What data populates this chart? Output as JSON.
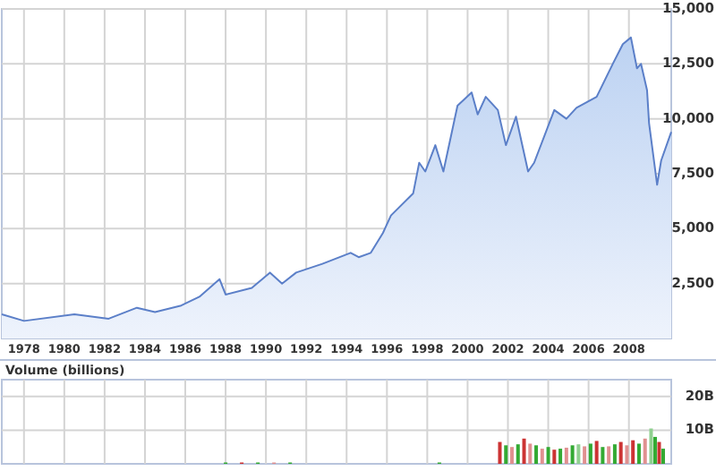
{
  "chart_data": [
    {
      "type": "area",
      "xlim": [
        1976.9,
        2010.1
      ],
      "xticks": [
        1978,
        1980,
        1982,
        1984,
        1986,
        1988,
        1990,
        1992,
        1994,
        1996,
        1998,
        2000,
        2002,
        2004,
        2006,
        2008
      ],
      "ylim": [
        0,
        15000
      ],
      "yticks": [
        {
          "value": 2500,
          "label": "2,500"
        },
        {
          "value": 5000,
          "label": "5,000"
        },
        {
          "value": 7500,
          "label": "7,500"
        },
        {
          "value": 10000,
          "label": "10,000"
        },
        {
          "value": 12500,
          "label": "12,500"
        },
        {
          "value": 15000,
          "label": "15,000"
        }
      ],
      "grid": true,
      "x": [
        1976.9,
        1978,
        1980.5,
        1982.2,
        1983.6,
        1984.5,
        1985.8,
        1986.7,
        1987.7,
        1988,
        1989.3,
        1990.2,
        1990.8,
        1991.5,
        1992.8,
        1994.2,
        1994.6,
        1995.2,
        1995.8,
        1996.2,
        1997.3,
        1997.6,
        1997.9,
        1998.4,
        1998.8,
        1999.5,
        2000.2,
        2000.5,
        2000.9,
        2001.5,
        2001.9,
        2002.4,
        2003,
        2003.3,
        2004.3,
        2004.9,
        2005.4,
        2006.4,
        2007.2,
        2007.7,
        2008.1,
        2008.4,
        2008.6,
        2008.9,
        2009,
        2009.4,
        2009.6,
        2010.1
      ],
      "series": [
        {
          "color": "#5b7fc8",
          "values": [
            1100,
            800,
            1100,
            900,
            1400,
            1200,
            1500,
            1900,
            2700,
            2000,
            2300,
            3000,
            2500,
            3000,
            3400,
            3900,
            3700,
            3900,
            4800,
            5600,
            6600,
            8000,
            7600,
            8800,
            7600,
            10600,
            11200,
            10200,
            11000,
            10400,
            8800,
            10100,
            7600,
            8000,
            10400,
            10000,
            10500,
            11000,
            12500,
            13400,
            13700,
            12300,
            12500,
            11300,
            9800,
            7000,
            8100,
            9400
          ]
        }
      ]
    },
    {
      "type": "bar",
      "title": "Volume (billions)",
      "xlim": [
        1976.9,
        2010.1
      ],
      "xticks": [
        1978,
        1980,
        1982,
        1984,
        1986,
        1988,
        1990,
        1992,
        1994,
        1996,
        1998,
        2000,
        2002,
        2004,
        2006,
        2008
      ],
      "tick_labels": "y",
      "ylim": [
        0,
        25
      ],
      "yticks": [
        {
          "value": 10,
          "label": "10B"
        },
        {
          "value": 20,
          "label": "20B"
        }
      ],
      "grid": true,
      "x": [
        1988,
        1988.8,
        1989.6,
        1990.4,
        1991.2,
        1998.6,
        2001.6,
        2001.9,
        2002.2,
        2002.5,
        2002.8,
        2003.1,
        2003.4,
        2003.7,
        2004,
        2004.3,
        2004.6,
        2004.9,
        2005.2,
        2005.5,
        2005.8,
        2006.1,
        2006.4,
        2006.7,
        2007,
        2007.3,
        2007.6,
        2007.9,
        2008.2,
        2008.5,
        2008.8,
        2009.1,
        2009.3,
        2009.5,
        2009.7
      ],
      "values": [
        0.4,
        0.4,
        0.4,
        0.4,
        0.4,
        0.4,
        6.5,
        5.5,
        5,
        5.8,
        7.5,
        6,
        5.5,
        4.5,
        5,
        4.2,
        4.5,
        4.8,
        5.5,
        5.8,
        5.2,
        6,
        6.8,
        5,
        5.2,
        5.8,
        6.5,
        5.5,
        7,
        6,
        7.5,
        10.5,
        8,
        6.5,
        4.5
      ],
      "colors": [
        "#33aa33",
        "#cc3333",
        "#33aa33",
        "#e09090",
        "#33aa33",
        "#33aa33",
        "#cc3333",
        "#33aa33",
        "#e09090",
        "#33aa33",
        "#cc3333",
        "#e09090",
        "#33aa33",
        "#e09090",
        "#33aa33",
        "#cc3333",
        "#33aa33",
        "#e09090",
        "#33aa33",
        "#90d090",
        "#e09090",
        "#33aa33",
        "#cc3333",
        "#33aa33",
        "#e09090",
        "#33aa33",
        "#cc3333",
        "#e09090",
        "#cc3333",
        "#33aa33",
        "#e09090",
        "#90d090",
        "#33aa33",
        "#cc3333",
        "#33aa33"
      ]
    }
  ]
}
